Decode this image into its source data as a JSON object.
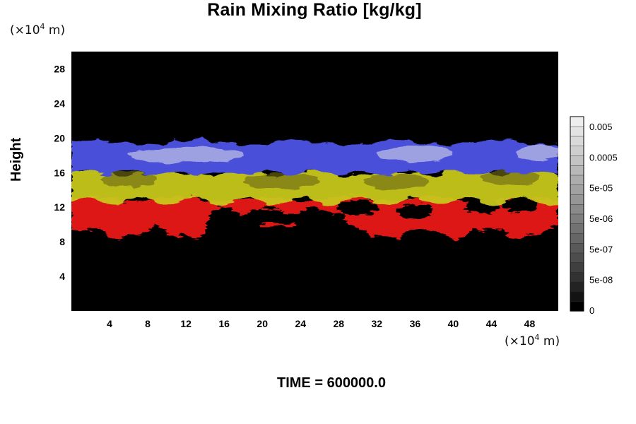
{
  "chart_data": {
    "type": "heatmap",
    "title": "Rain Mixing Ratio [kg/kg]",
    "xlabel": "",
    "ylabel": "Height",
    "x_unit": "(×10⁴ m)",
    "y_unit": "(×10⁴ m)",
    "xlim": [
      0,
      51
    ],
    "ylim": [
      0,
      30
    ],
    "x_ticks": [
      4,
      8,
      12,
      16,
      20,
      24,
      28,
      32,
      36,
      40,
      44,
      48
    ],
    "y_ticks": [
      4,
      8,
      12,
      16,
      20,
      24,
      28
    ],
    "colorbar": {
      "tick_labels": [
        "0.005",
        "0.0005",
        "5e-05",
        "5e-06",
        "5e-07",
        "5e-08",
        "0"
      ],
      "levels": 20,
      "colors": [
        "#000000",
        "#eeeeee"
      ]
    },
    "layers": [
      {
        "color": "#dd1414",
        "height_range": [
          9,
          13
        ]
      },
      {
        "color": "#c8c81e",
        "height_range": [
          13,
          16
        ]
      },
      {
        "color": "#4a4fd8",
        "height_range": [
          16,
          19.5
        ]
      }
    ],
    "footer": "TIME = 600000.0"
  }
}
